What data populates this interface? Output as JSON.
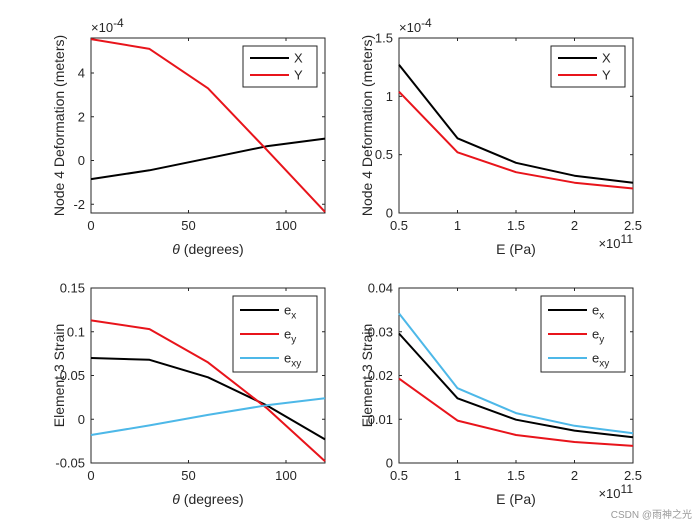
{
  "watermark": "CSDN @雨神之光",
  "chart_data": [
    {
      "type": "line",
      "xlabel_prefix": "θ",
      "xlabel": " (degrees)",
      "ylabel": "Node 4 Deformation (meters)",
      "xlim": [
        0,
        120
      ],
      "ylim": [
        -2.4,
        5.6
      ],
      "xticks": [
        0,
        50,
        100
      ],
      "xtick_labels": [
        "0",
        "50",
        "100"
      ],
      "yticks": [
        -2,
        0,
        2,
        4
      ],
      "ytick_labels": [
        "-2",
        "0",
        "2",
        "4"
      ],
      "y_exponent_label": "×10",
      "y_exponent": "-4",
      "x_exponent_label": "",
      "x_exponent": "",
      "x": [
        0,
        30,
        60,
        90,
        120
      ],
      "series": [
        {
          "name": "X",
          "sub": "",
          "color": "#000000",
          "values": [
            -0.85,
            -0.45,
            0.1,
            0.65,
            1.0
          ]
        },
        {
          "name": "Y",
          "sub": "",
          "color": "#e8141b",
          "values": [
            5.55,
            5.1,
            3.3,
            0.5,
            -2.35
          ]
        }
      ]
    },
    {
      "type": "line",
      "xlabel_prefix": "",
      "xlabel": "E (Pa)",
      "ylabel": "Node 4 Deformation (meters)",
      "xlim": [
        0.5,
        2.5
      ],
      "ylim": [
        0,
        1.5
      ],
      "xticks": [
        0.5,
        1,
        1.5,
        2,
        2.5
      ],
      "xtick_labels": [
        "0.5",
        "1",
        "1.5",
        "2",
        "2.5"
      ],
      "yticks": [
        0,
        0.5,
        1,
        1.5
      ],
      "ytick_labels": [
        "0",
        "0.5",
        "1",
        "1.5"
      ],
      "y_exponent_label": "×10",
      "y_exponent": "-4",
      "x_exponent_label": "×10",
      "x_exponent": "11",
      "x": [
        0.5,
        1,
        1.5,
        2,
        2.5
      ],
      "series": [
        {
          "name": "X",
          "sub": "",
          "color": "#000000",
          "values": [
            1.27,
            0.64,
            0.43,
            0.32,
            0.26
          ]
        },
        {
          "name": "Y",
          "sub": "",
          "color": "#e8141b",
          "values": [
            1.04,
            0.52,
            0.35,
            0.26,
            0.21
          ]
        }
      ]
    },
    {
      "type": "line",
      "xlabel_prefix": "θ",
      "xlabel": " (degrees)",
      "ylabel": "Element 3 Strain",
      "xlim": [
        0,
        120
      ],
      "ylim": [
        -0.05,
        0.15
      ],
      "xticks": [
        0,
        50,
        100
      ],
      "xtick_labels": [
        "0",
        "50",
        "100"
      ],
      "yticks": [
        -0.05,
        0,
        0.05,
        0.1,
        0.15
      ],
      "ytick_labels": [
        "-0.05",
        "0",
        "0.05",
        "0.1",
        "0.15"
      ],
      "y_exponent_label": "",
      "y_exponent": "",
      "x_exponent_label": "",
      "x_exponent": "",
      "x": [
        0,
        30,
        60,
        90,
        120
      ],
      "series": [
        {
          "name": "e",
          "sub": "x",
          "color": "#000000",
          "values": [
            0.07,
            0.068,
            0.048,
            0.016,
            -0.023
          ]
        },
        {
          "name": "e",
          "sub": "y",
          "color": "#e8141b",
          "values": [
            0.113,
            0.103,
            0.065,
            0.013,
            -0.048
          ]
        },
        {
          "name": "e",
          "sub": "xy",
          "color": "#4db8e8",
          "values": [
            -0.018,
            -0.007,
            0.005,
            0.016,
            0.024
          ]
        }
      ]
    },
    {
      "type": "line",
      "xlabel_prefix": "",
      "xlabel": "E (Pa)",
      "ylabel": "Element 3 Strain",
      "xlim": [
        0.5,
        2.5
      ],
      "ylim": [
        0,
        0.04
      ],
      "xticks": [
        0.5,
        1,
        1.5,
        2,
        2.5
      ],
      "xtick_labels": [
        "0.5",
        "1",
        "1.5",
        "2",
        "2.5"
      ],
      "yticks": [
        0,
        0.01,
        0.02,
        0.03,
        0.04
      ],
      "ytick_labels": [
        "0",
        "0.01",
        "0.02",
        "0.03",
        "0.04"
      ],
      "y_exponent_label": "",
      "y_exponent": "",
      "x_exponent_label": "×10",
      "x_exponent": "11",
      "x": [
        0.5,
        1,
        1.5,
        2,
        2.5
      ],
      "series": [
        {
          "name": "e",
          "sub": "x",
          "color": "#000000",
          "values": [
            0.0296,
            0.0148,
            0.0099,
            0.0074,
            0.0059
          ]
        },
        {
          "name": "e",
          "sub": "y",
          "color": "#e8141b",
          "values": [
            0.0193,
            0.0097,
            0.0064,
            0.0048,
            0.0039
          ]
        },
        {
          "name": "e",
          "sub": "xy",
          "color": "#4db8e8",
          "values": [
            0.0342,
            0.0171,
            0.0114,
            0.0085,
            0.0068
          ]
        }
      ]
    }
  ]
}
